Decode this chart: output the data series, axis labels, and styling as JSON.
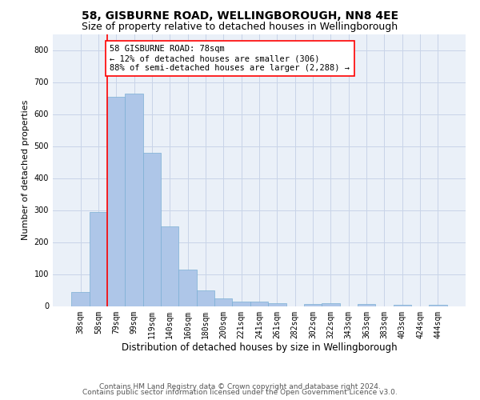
{
  "title": "58, GISBURNE ROAD, WELLINGBOROUGH, NN8 4EE",
  "subtitle": "Size of property relative to detached houses in Wellingborough",
  "xlabel": "Distribution of detached houses by size in Wellingborough",
  "ylabel": "Number of detached properties",
  "footer_line1": "Contains HM Land Registry data © Crown copyright and database right 2024.",
  "footer_line2": "Contains public sector information licensed under the Open Government Licence v3.0.",
  "categories": [
    "38sqm",
    "58sqm",
    "79sqm",
    "99sqm",
    "119sqm",
    "140sqm",
    "160sqm",
    "180sqm",
    "200sqm",
    "221sqm",
    "241sqm",
    "261sqm",
    "282sqm",
    "302sqm",
    "322sqm",
    "343sqm",
    "363sqm",
    "383sqm",
    "403sqm",
    "424sqm",
    "444sqm"
  ],
  "values": [
    45,
    293,
    655,
    665,
    478,
    248,
    113,
    50,
    25,
    14,
    13,
    8,
    0,
    7,
    8,
    0,
    6,
    0,
    5,
    0,
    5
  ],
  "bar_color": "#aec6e8",
  "bar_edge_color": "#7bafd4",
  "grid_color": "#c8d4e8",
  "background_color": "#eaf0f8",
  "annotation_line1": "58 GISBURNE ROAD: 78sqm",
  "annotation_line2": "← 12% of detached houses are smaller (306)",
  "annotation_line3": "88% of semi-detached houses are larger (2,288) →",
  "ylim": [
    0,
    850
  ],
  "yticks": [
    0,
    100,
    200,
    300,
    400,
    500,
    600,
    700,
    800
  ],
  "title_fontsize": 10,
  "subtitle_fontsize": 9,
  "xlabel_fontsize": 8.5,
  "ylabel_fontsize": 8,
  "tick_fontsize": 7,
  "annot_fontsize": 7.5,
  "footer_fontsize": 6.5
}
